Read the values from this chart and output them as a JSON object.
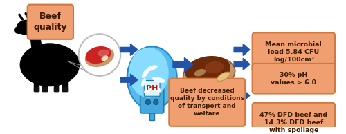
{
  "box_color": "#f0a070",
  "box_edge_color": "#d07840",
  "arrow_color": "#2255aa",
  "text_color": "#3a1a00",
  "title_text": "Beef\nquality",
  "boxes_right": [
    "Mean microbial\nload 5.84 CFU\nlog/100cm²",
    "30% pH\nvalues > 6.0",
    "47% DFD beef and\n14.3% DFD beef\nwith spoilage"
  ],
  "center_box_text": "Beef decreased\nquality by conditions\nof transport and\nwelfare",
  "figsize": [
    5.0,
    1.94
  ],
  "dpi": 100
}
